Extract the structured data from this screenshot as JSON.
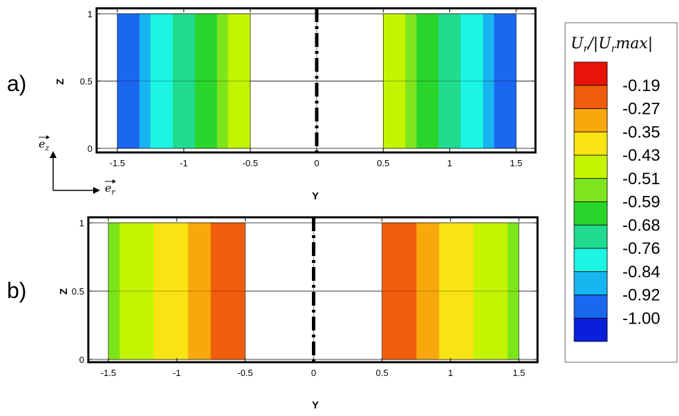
{
  "chart_data": [
    {
      "panel": "a)",
      "type": "heatmap",
      "xlabel": "Y",
      "ylabel": "Z",
      "xlim": [
        -1.5,
        1.5
      ],
      "ylim": [
        0,
        1
      ],
      "x_ticks": [
        "-1.5",
        "-1",
        "-0.5",
        "0",
        "0.5",
        "1",
        "1.5"
      ],
      "y_ticks": [
        "0",
        "0.5",
        "1"
      ],
      "grid": true,
      "domains": [
        {
          "y_start": -1.5,
          "y_end": -0.5
        },
        {
          "y_start": 0.5,
          "y_end": 1.5
        }
      ],
      "center_line_y": 0,
      "field": "Ur/|Urmax|",
      "values_at_outer_wall": -1.0,
      "values_at_inner_wall": -0.43
    },
    {
      "panel": "b)",
      "type": "heatmap",
      "xlabel": "Y",
      "ylabel": "Z",
      "xlim": [
        -1.5,
        1.5
      ],
      "ylim": [
        0,
        1
      ],
      "x_ticks": [
        "-1.5",
        "-1",
        "-0.5",
        "0",
        "0.5",
        "1",
        "1.5"
      ],
      "y_ticks": [
        "0",
        "0.5",
        "1"
      ],
      "grid": true,
      "domains": [
        {
          "y_start": -1.5,
          "y_end": -0.5
        },
        {
          "y_start": 0.5,
          "y_end": 1.5
        }
      ],
      "center_line_y": 0,
      "field": "Ur/|Urmax|",
      "values_at_outer_wall": -0.55,
      "values_at_inner_wall": -0.19
    }
  ],
  "panels": {
    "a_label": "a)",
    "b_label": "b)"
  },
  "axes": {
    "x_name": "Y",
    "y_name": "Z"
  },
  "basis": {
    "ez": "e",
    "ez_sub": "z",
    "er": "e",
    "er_sub": "r"
  },
  "colorbar": {
    "title": "U",
    "title_sub": "r",
    "title_mid": "/|U",
    "title_sub2": "r",
    "title_end": "max|",
    "levels": [
      "-0.19",
      "-0.27",
      "-0.35",
      "-0.43",
      "-0.51",
      "-0.59",
      "-0.68",
      "-0.76",
      "-0.84",
      "-0.92",
      "-1.00"
    ],
    "colors": [
      "#e8130b",
      "#f15d0c",
      "#f9a80c",
      "#f8e412",
      "#c4f400",
      "#7ee51c",
      "#2ad62c",
      "#21db8e",
      "#1cf5e2",
      "#17b5ef",
      "#1b68f0",
      "#0a1fdc"
    ]
  }
}
